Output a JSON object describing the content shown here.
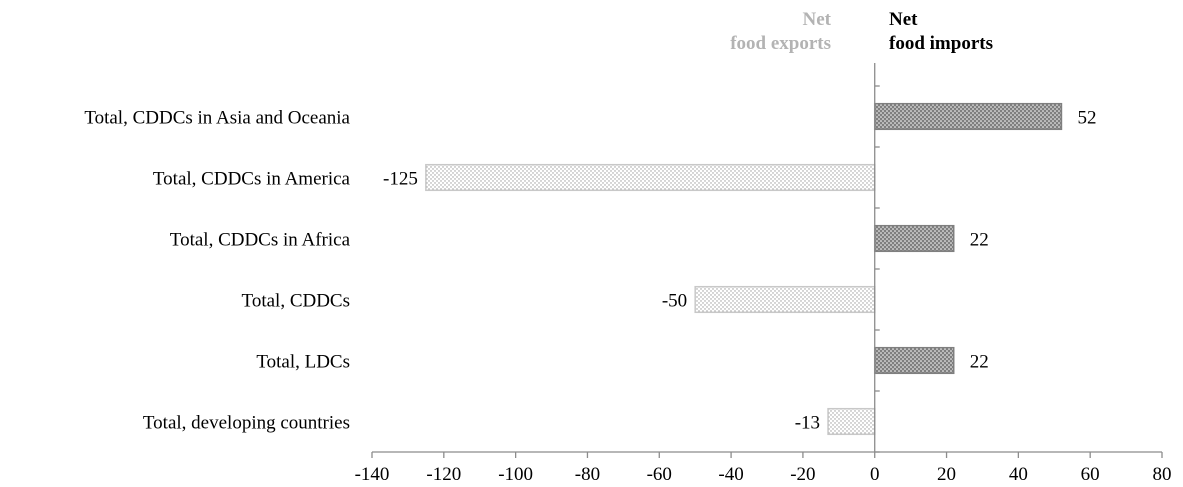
{
  "legend": {
    "exports": {
      "line1": "Net",
      "line2": "food exports",
      "color": "#b3b3b3"
    },
    "imports": {
      "line1": "Net",
      "line2": "food imports",
      "color": "#000000"
    }
  },
  "chart_data": {
    "type": "bar",
    "orientation": "horizontal",
    "categories": [
      "Total, CDDCs in Asia and Oceania",
      "Total, CDDCs in America",
      "Total, CDDCs in Africa",
      "Total, CDDCs",
      "Total, LDCs",
      "Total, developing countries"
    ],
    "values": [
      52,
      -125,
      22,
      -50,
      22,
      -13
    ],
    "value_labels": [
      "52",
      "-125",
      "22",
      "-50",
      "22",
      "-13"
    ],
    "xlim": [
      -140,
      80
    ],
    "xticks": [
      -140,
      -120,
      -100,
      -80,
      -60,
      -40,
      -20,
      0,
      20,
      40,
      60,
      80
    ],
    "xtick_labels": [
      "-140",
      "-120",
      "-100",
      "-80",
      "-60",
      "-40",
      "-20",
      "0",
      "20",
      "40",
      "60",
      "80"
    ],
    "title": "",
    "xlabel": "",
    "ylabel": "",
    "grid": false,
    "colors": {
      "positive": "#7f7f7f",
      "negative": "#d0d0d0",
      "axis": "#8c8c8c"
    }
  }
}
